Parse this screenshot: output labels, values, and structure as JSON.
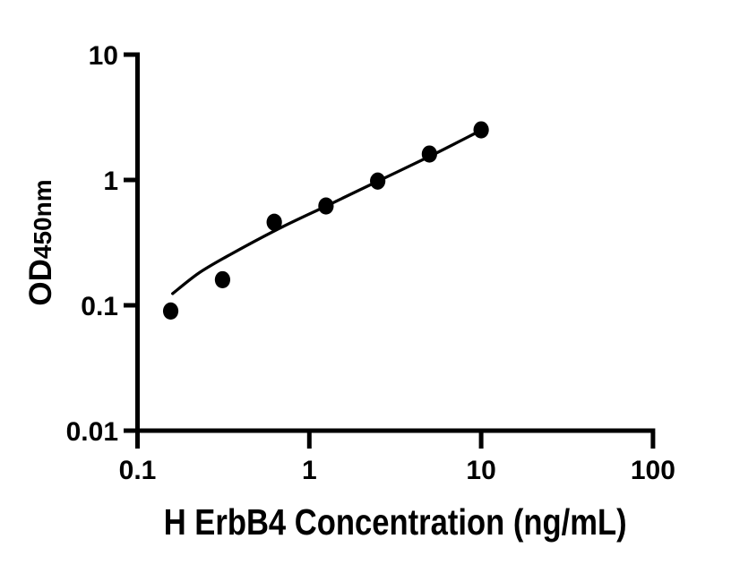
{
  "figure": {
    "background_color": "#ffffff",
    "ink_color": "#000000"
  },
  "chart_data": {
    "type": "scatter",
    "title": "",
    "xlabel": "H ErbB4 Concentration (ng/mL)",
    "ylabel_main": "OD",
    "ylabel_sub": "450nm",
    "x_scale": "log",
    "y_scale": "log",
    "xlim": [
      0.1,
      100
    ],
    "ylim": [
      0.01,
      10
    ],
    "x_ticks": [
      0.1,
      1,
      10,
      100
    ],
    "x_tick_labels": [
      "0.1",
      "1",
      "10",
      "100"
    ],
    "y_ticks": [
      10,
      1,
      0.1,
      0.01
    ],
    "y_tick_labels": [
      "10",
      "1",
      "0.1",
      "0.01"
    ],
    "grid": false,
    "legend": "none",
    "marker": "filled-circle",
    "marker_color": "#000000",
    "line_color": "#000000",
    "series": [
      {
        "name": "standard-points",
        "type": "scatter",
        "x": [
          0.156,
          0.3125,
          0.625,
          1.25,
          2.5,
          5,
          10
        ],
        "y": [
          0.09,
          0.16,
          0.46,
          0.62,
          0.98,
          1.61,
          2.51
        ]
      },
      {
        "name": "fitted-curve",
        "type": "line",
        "x": [
          0.16,
          0.225,
          0.32,
          0.64,
          1.24,
          2.5,
          5.05,
          10.0
        ],
        "y": [
          0.124,
          0.179,
          0.239,
          0.398,
          0.615,
          0.976,
          1.55,
          2.49
        ]
      }
    ]
  }
}
